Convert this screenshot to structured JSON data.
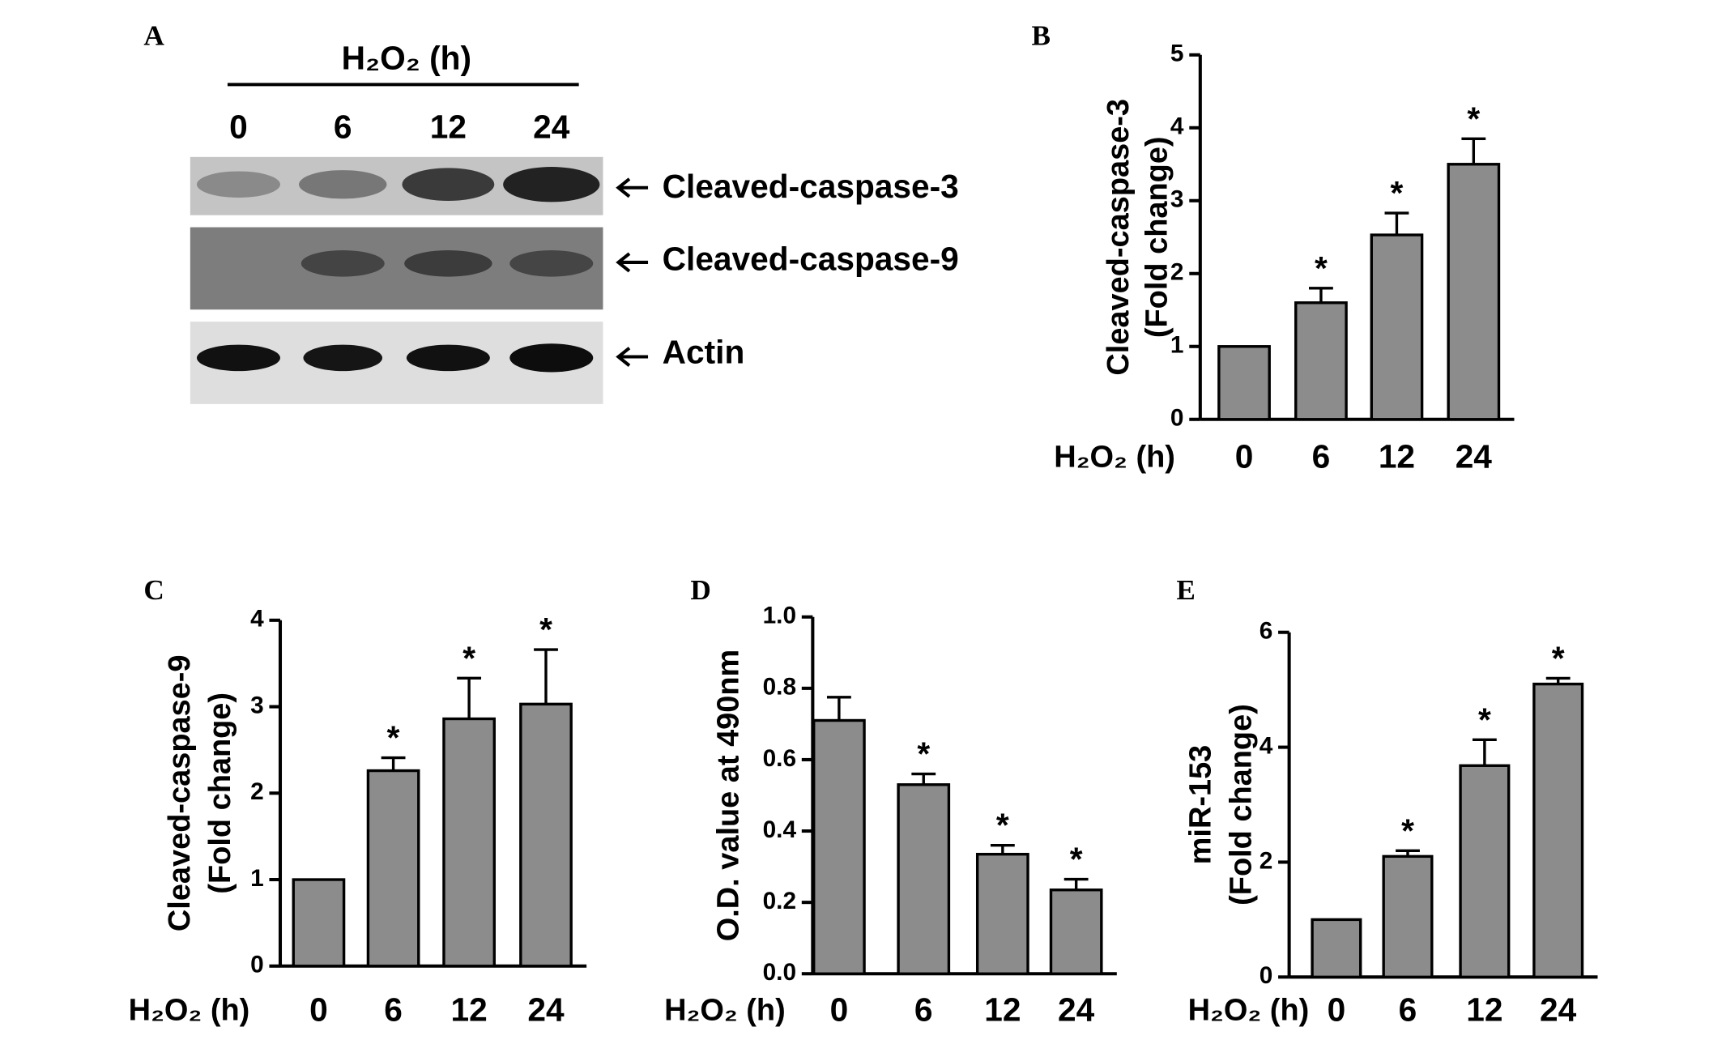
{
  "blot": {
    "panel": "A",
    "title": "H₂O₂ (h)",
    "lanes": [
      "0",
      "6",
      "12",
      "24"
    ],
    "bands": [
      "Cleaved-caspase-3",
      "Cleaved-caspase-9",
      "Actin"
    ]
  },
  "chart_data": [
    {
      "type": "bar",
      "panel": "B",
      "ylabel": [
        "Cleaved-caspase-3",
        "(Fold change)"
      ],
      "xlabel": "H₂O₂ (h)",
      "categories": [
        "0",
        "6",
        "12",
        "24"
      ],
      "values": [
        1,
        1.6,
        2.53,
        3.5
      ],
      "errors": [
        null,
        0.2,
        0.3,
        0.35
      ],
      "annotations": [
        null,
        "*",
        "*",
        "*"
      ],
      "color": "#8c8c8c",
      "ylim": [
        0,
        5
      ],
      "yticks": [
        0,
        1,
        2,
        3,
        4,
        5
      ]
    },
    {
      "type": "bar",
      "panel": "C",
      "ylabel": [
        "Cleaved-caspase-9",
        "(Fold change)"
      ],
      "xlabel": "H₂O₂ (h)",
      "categories": [
        "0",
        "6",
        "12",
        "24"
      ],
      "values": [
        1,
        2.26,
        2.86,
        3.03
      ],
      "errors": [
        null,
        0.15,
        0.47,
        0.63
      ],
      "annotations": [
        null,
        "*",
        "*",
        "*"
      ],
      "color": "#8c8c8c",
      "ylim": [
        0,
        4
      ],
      "yticks": [
        0,
        1,
        2,
        3,
        4
      ]
    },
    {
      "type": "bar",
      "panel": "D",
      "ylabel": [
        "O.D. value at 490nm"
      ],
      "xlabel": "H₂O₂ (h)",
      "categories": [
        "0",
        "6",
        "12",
        "24"
      ],
      "values": [
        0.71,
        0.53,
        0.335,
        0.235
      ],
      "errors": [
        0.065,
        0.03,
        0.025,
        0.03
      ],
      "annotations": [
        null,
        "*",
        "*",
        "*"
      ],
      "color": "#8c8c8c",
      "ylim": [
        0,
        1
      ],
      "yticks": [
        {
          "value": 0,
          "label": "0.0"
        },
        0.2,
        0.4,
        0.6,
        0.8,
        {
          "value": 1,
          "label": "1.0"
        }
      ]
    },
    {
      "type": "bar",
      "panel": "E",
      "ylabel": [
        "miR-153",
        "(Fold change)"
      ],
      "xlabel": "H₂O₂ (h)",
      "categories": [
        "0",
        "6",
        "12",
        "24"
      ],
      "values": [
        1,
        2.1,
        3.68,
        5.1
      ],
      "errors": [
        null,
        0.1,
        0.45,
        0.1
      ],
      "annotations": [
        null,
        "*",
        "*",
        "*"
      ],
      "color": "#8c8c8c",
      "ylim": [
        0,
        6
      ],
      "yticks": [
        0,
        2,
        4,
        6
      ]
    }
  ]
}
